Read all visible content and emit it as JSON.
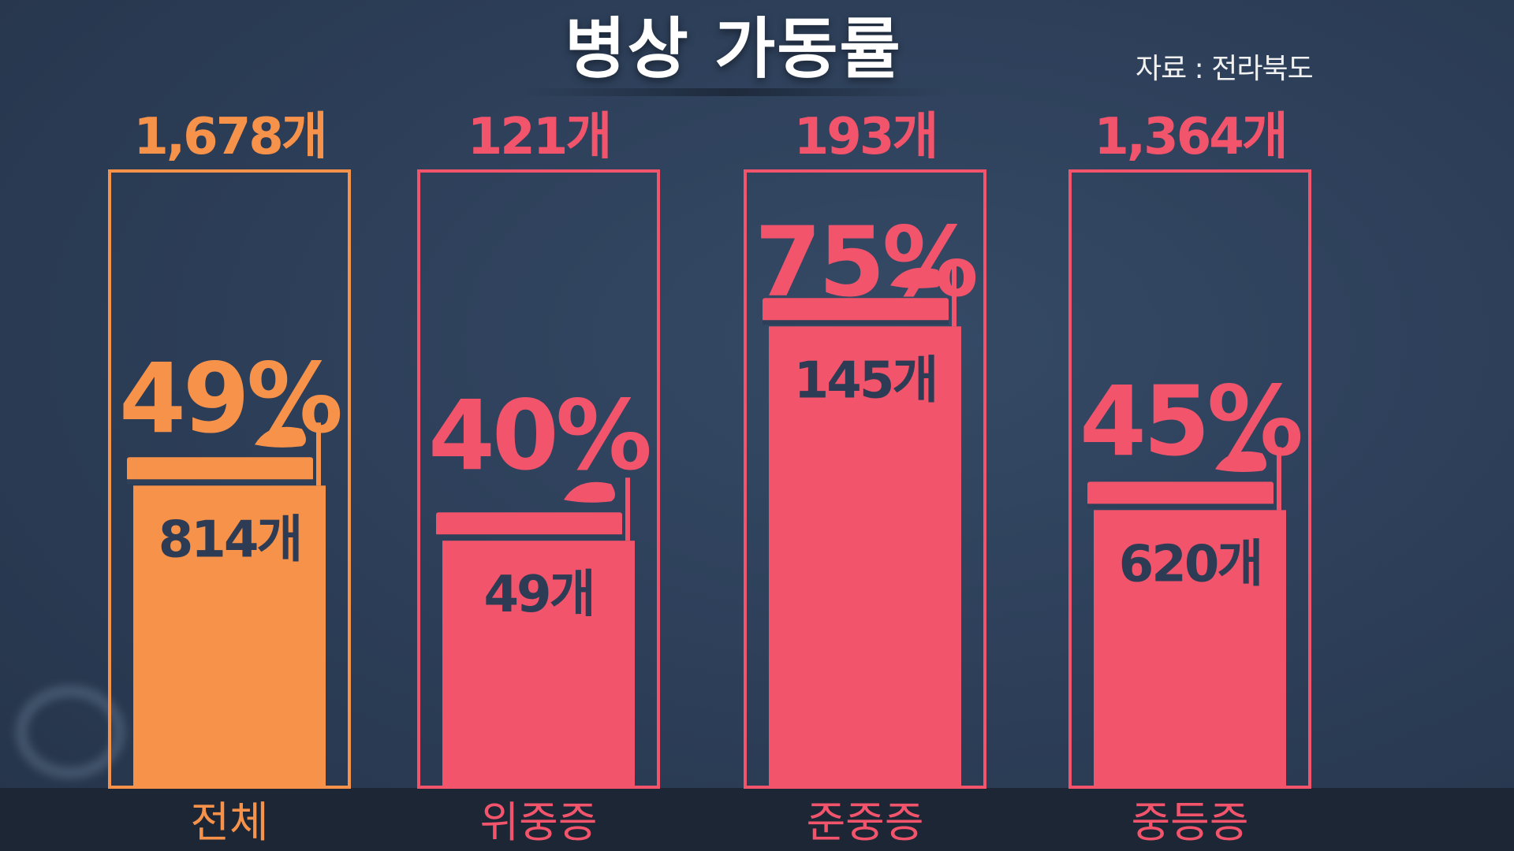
{
  "header": {
    "title": "병상 가동률",
    "source": "자료 : 전라북도"
  },
  "colors": {
    "overall": "#f7924a",
    "severity": "#f2546c",
    "background": "#2e3f59",
    "count_text": "#2d3c54",
    "bottom_band": "#1c2635"
  },
  "chart_data": {
    "type": "bar",
    "title": "병상 가동률",
    "categories": [
      "전체",
      "위중증",
      "준중증",
      "중등증"
    ],
    "total_labels": [
      "1,678개",
      "121개",
      "193개",
      "1,364개"
    ],
    "totals": [
      1678,
      121,
      193,
      1364
    ],
    "used_labels": [
      "814개",
      "49개",
      "145개",
      "620개"
    ],
    "used": [
      814,
      49,
      145,
      620
    ],
    "rate_labels": [
      "49%",
      "40%",
      "75%",
      "45%"
    ],
    "rates": [
      49,
      40,
      75,
      45
    ],
    "ylim": [
      0,
      100
    ]
  }
}
